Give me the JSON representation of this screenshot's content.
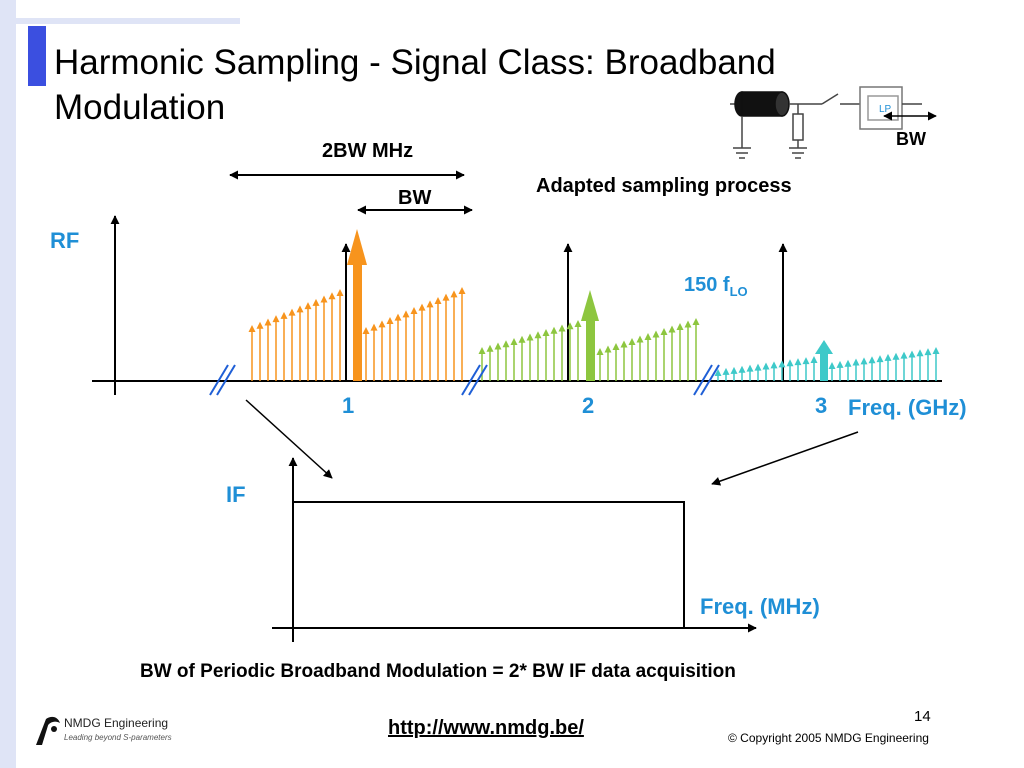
{
  "title": "Harmonic Sampling - Signal Class: Broadband Modulation",
  "labels": {
    "two_bw": "2BW MHz",
    "bw": "BW",
    "adapted": "Adapted sampling process",
    "schematic_bw": "BW",
    "schematic_lp": "LP",
    "rf": "RF",
    "if": "IF",
    "lo_prefix": "150 f",
    "lo_sub": "LO",
    "freq_ghz": "Freq. (GHz)",
    "freq_mhz": "Freq. (MHz)",
    "bottom_caption": "BW of Periodic Broadband Modulation = 2* BW IF data acquisition"
  },
  "ticks": [
    "1",
    "2",
    "3"
  ],
  "colors": {
    "title_accent": "#3b4fe0",
    "label_blue": "#1f8fd6",
    "harmonic_1": "#f7941d",
    "harmonic_2": "#8dc63f",
    "harmonic_3": "#3ec9c9"
  },
  "footer": {
    "url": "http://www.nmdg.be/",
    "page_number": "14",
    "copyright": "© Copyright 2005 NMDG Engineering",
    "logo_name": "NMDG Engineering",
    "logo_tagline": "Leading beyond S-parameters"
  }
}
